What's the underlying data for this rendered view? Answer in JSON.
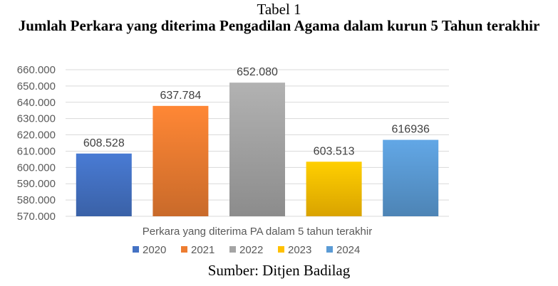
{
  "caption": {
    "label": "Tabel 1",
    "title": "Jumlah Perkara yang diterima Pengadilan Agama dalam kurun 5 Tahun terakhir"
  },
  "source": "Sumber: Ditjen Badilag",
  "chart_data": {
    "type": "bar",
    "xlabel": "Perkara yang diterima PA dalam 5 tahun terakhir",
    "ylabel": "",
    "ylim": [
      570000,
      660000
    ],
    "yticks": [
      570000,
      580000,
      590000,
      600000,
      610000,
      620000,
      630000,
      640000,
      650000,
      660000
    ],
    "ytick_labels": [
      "570.000",
      "580.000",
      "590.000",
      "600.000",
      "610.000",
      "620.000",
      "630.000",
      "640.000",
      "650.000",
      "660.000"
    ],
    "grid": true,
    "legend_position": "bottom",
    "series": [
      {
        "name": "2020",
        "value": 608528,
        "label": "608.528",
        "color": "#4472C4"
      },
      {
        "name": "2021",
        "value": 637784,
        "label": "637.784",
        "color": "#ED7D31"
      },
      {
        "name": "2022",
        "value": 652080,
        "label": "652.080",
        "color": "#A5A5A5"
      },
      {
        "name": "2023",
        "value": 603513,
        "label": "603.513",
        "color": "#FFC000"
      },
      {
        "name": "2024",
        "value": 616936,
        "label": "616936",
        "color": "#5B9BD5"
      }
    ]
  }
}
